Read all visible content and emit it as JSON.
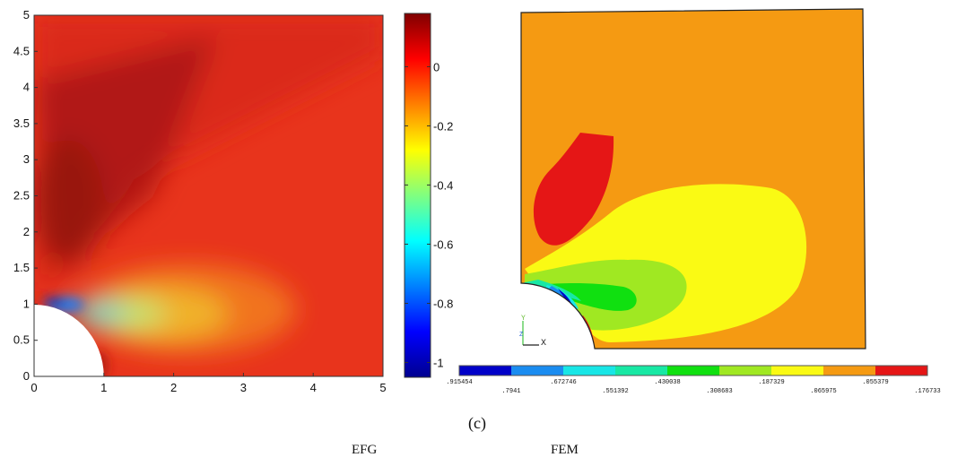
{
  "efg": {
    "label": "EFG",
    "xticks": [
      "0",
      "1",
      "2",
      "3",
      "4",
      "5"
    ],
    "yticks": [
      "0",
      "0.5",
      "1",
      "1.5",
      "2",
      "2.5",
      "3",
      "3.5",
      "4",
      "4.5",
      "5"
    ],
    "colorbar_ticks": [
      "0",
      "-0.2",
      "-0.4",
      "-0.6",
      "-0.8",
      "-1"
    ],
    "colorbar_range": [
      -1.05,
      0.18
    ]
  },
  "fem": {
    "label": "FEM",
    "axis_labels": {
      "y": "Y",
      "z": "Z",
      "x": "X"
    },
    "colors": [
      "#0000c8",
      "#1a8cf0",
      "#18e6e6",
      "#18e8a4",
      "#10e010",
      "#a0e822",
      "#fafa14",
      "#f59a12",
      "#e51616"
    ],
    "legend_values": [
      ".915454",
      ".7941",
      ".672746",
      ".551392",
      ".430038",
      ".308683",
      ".187329",
      ".065975",
      ".055379",
      ".176733"
    ]
  },
  "caption": "(c)",
  "chart_data": [
    {
      "type": "heatmap",
      "method": "EFG",
      "xlim": [
        0,
        5
      ],
      "ylim": [
        0,
        5
      ],
      "xticks": [
        0,
        1,
        2,
        3,
        4,
        5
      ],
      "yticks": [
        0,
        0.5,
        1,
        1.5,
        2,
        2.5,
        3,
        3.5,
        4,
        4.5,
        5
      ],
      "colorbar": {
        "min": -1.05,
        "max": 0.18,
        "ticks": [
          0,
          -0.2,
          -0.4,
          -0.6,
          -0.8,
          -1
        ],
        "colormap": "jet"
      },
      "hole_radius": 1,
      "approx_field_values": {
        "background": -0.02,
        "dark_red_band_peak": 0.15,
        "minimum_near_hole_top": -1.0,
        "wake_lobe_center": -0.45
      }
    },
    {
      "type": "heatmap",
      "method": "FEM",
      "contour_levels": [
        -0.915454,
        -0.7941,
        -0.672746,
        -0.551392,
        -0.430038,
        -0.308683,
        -0.187329,
        -0.065975,
        0.055379,
        0.176733
      ],
      "hole_radius": 1
    }
  ]
}
